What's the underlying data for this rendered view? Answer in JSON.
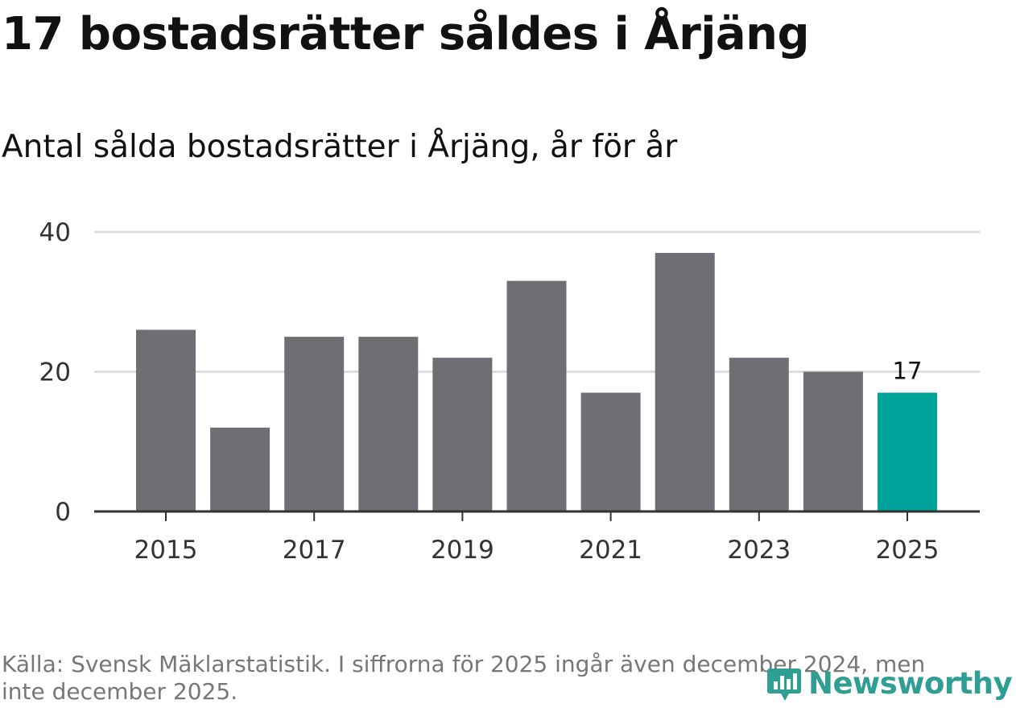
{
  "title": "17 bostadsrätter såldes i Årjäng",
  "subtitle": "Antal sålda bostadsrätter i Årjäng, år för år",
  "footer": "Källa: Svensk Mäklarstatistik. I siffrorna för 2025 ingår även december 2024, men inte december 2025.",
  "logo_text": "Newsworthy",
  "colors": {
    "bar": "#6f6e74",
    "highlight": "#00a39a",
    "grid": "#dddddd",
    "axis": "#333333"
  },
  "chart_data": {
    "type": "bar",
    "categories": [
      "2015",
      "2016",
      "2017",
      "2018",
      "2019",
      "2020",
      "2021",
      "2022",
      "2023",
      "2024",
      "2025"
    ],
    "values": [
      26,
      12,
      25,
      25,
      22,
      33,
      17,
      37,
      22,
      20,
      17
    ],
    "x_tick_labels": [
      "2015",
      "2017",
      "2019",
      "2021",
      "2023",
      "2025"
    ],
    "y_ticks": [
      0,
      20,
      40
    ],
    "ylim": [
      0,
      40
    ],
    "highlight_index": 10,
    "data_labels": [
      {
        "index": 10,
        "text": "17"
      }
    ],
    "grid": true
  }
}
